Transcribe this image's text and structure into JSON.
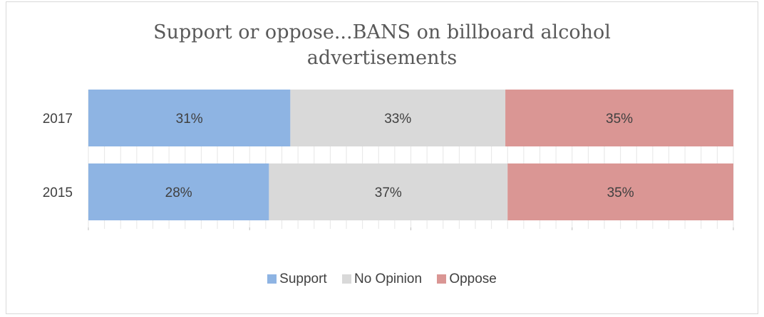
{
  "chart_data": {
    "type": "bar",
    "orientation": "horizontal",
    "stacked": "percent",
    "title": "Support or oppose...BANS on billboard alcohol advertisements",
    "title_lines": [
      "Support or oppose...BANS on billboard alcohol",
      "advertisements"
    ],
    "categories": [
      "2017",
      "2015"
    ],
    "series": [
      {
        "name": "Support",
        "values": [
          31,
          28
        ],
        "labels": [
          "31%",
          "28%"
        ],
        "color": "#8eb4e3"
      },
      {
        "name": "No Opinion",
        "values": [
          33,
          37
        ],
        "labels": [
          "33%",
          "37%"
        ],
        "color": "#d9d9d9"
      },
      {
        "name": "Oppose",
        "values": [
          35,
          35
        ],
        "labels": [
          "35%",
          "35%"
        ],
        "color": "#da9694"
      }
    ],
    "xlim": [
      0,
      100
    ],
    "grid": true,
    "legend_position": "bottom"
  }
}
